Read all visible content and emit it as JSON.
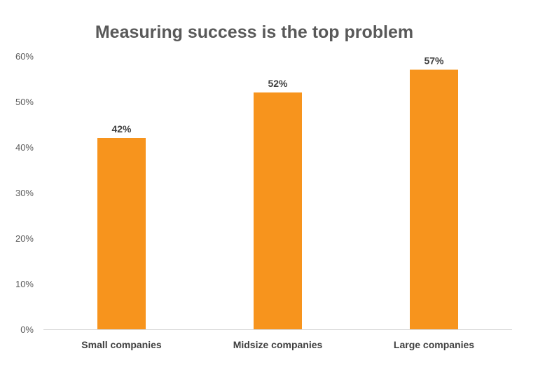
{
  "chart_data": {
    "type": "bar",
    "title": "Measuring success is the top problem",
    "categories": [
      "Small companies",
      "Midsize companies",
      "Large companies"
    ],
    "values": [
      42,
      52,
      57
    ],
    "data_labels": [
      "42%",
      "52%",
      "57%"
    ],
    "ylim": [
      0,
      60
    ],
    "yticks": [
      "0%",
      "10%",
      "20%",
      "30%",
      "40%",
      "50%",
      "60%"
    ],
    "xlabel": "",
    "ylabel": "",
    "grid": false,
    "legend": "none",
    "bar_color": "#F7941D"
  }
}
